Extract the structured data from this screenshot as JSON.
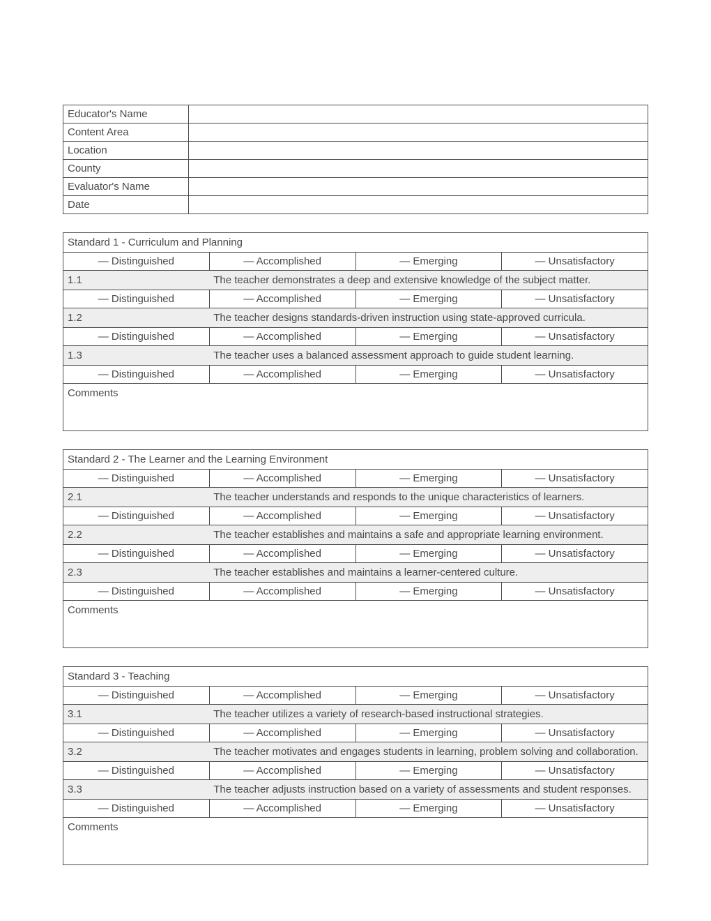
{
  "header_fields": [
    {
      "label": "Educator's Name",
      "value": ""
    },
    {
      "label": "Content Area",
      "value": ""
    },
    {
      "label": " Location",
      "value": ""
    },
    {
      "label": "County",
      "value": ""
    },
    {
      "label": "Evaluator's Name",
      "value": ""
    },
    {
      "label": "Date",
      "value": ""
    }
  ],
  "ratings": [
    "— Distinguished",
    "— Accomplished",
    "— Emerging",
    "— Unsatisfactory"
  ],
  "comments_label": "Comments",
  "standards": [
    {
      "title": "Standard 1 - Curriculum and Planning",
      "criteria": [
        {
          "num": "1.1",
          "text": "The teacher demonstrates a deep and extensive knowledge of the subject matter."
        },
        {
          "num": "1.2",
          "text": "The teacher designs standards-driven instruction using state-approved curricula."
        },
        {
          "num": "1.3",
          "text": "The teacher uses a balanced assessment approach to guide student learning."
        }
      ]
    },
    {
      "title": "Standard 2 - The Learner and the Learning Environment",
      "criteria": [
        {
          "num": "2.1",
          "text": "The teacher understands and responds to the unique characteristics of learners."
        },
        {
          "num": "2.2",
          "text": "The teacher establishes and maintains a safe and appropriate learning environment."
        },
        {
          "num": "2.3",
          "text": "The teacher establishes and maintains a learner-centered culture."
        }
      ]
    },
    {
      "title": "Standard 3 - Teaching",
      "criteria": [
        {
          "num": "3.1",
          "text": "The teacher utilizes a variety of research-based instructional strategies."
        },
        {
          "num": "3.2",
          "text": "The teacher motivates and engages students in learning, problem solving and collaboration."
        },
        {
          "num": "3.3",
          "text": "The teacher adjusts instruction based on a variety of assessments and student responses."
        }
      ]
    }
  ]
}
